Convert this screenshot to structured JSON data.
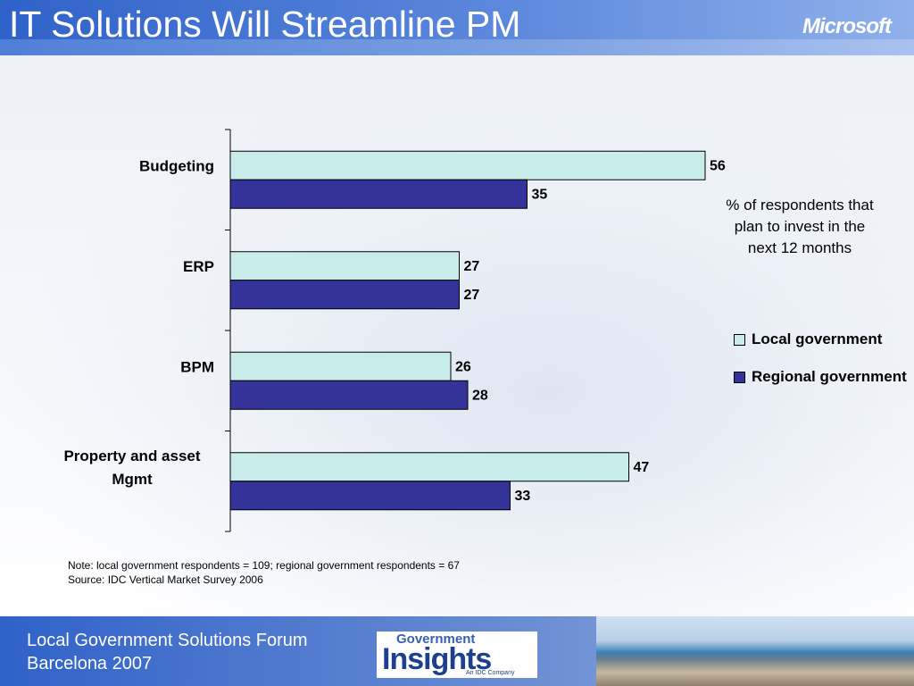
{
  "slide": {
    "title": "IT Solutions Will Streamline PM",
    "logo_text": "Microsoft"
  },
  "chart_data": {
    "type": "bar",
    "orientation": "horizontal",
    "categories": [
      "Budgeting",
      "ERP",
      "BPM",
      "Property and asset Mgmt"
    ],
    "series": [
      {
        "name": "Local government",
        "values": [
          56,
          27,
          26,
          47
        ],
        "color": "#c8ecea"
      },
      {
        "name": "Regional government",
        "values": [
          35,
          27,
          28,
          33
        ],
        "color": "#333399"
      }
    ],
    "annotation": "% of respondents that plan to invest in the next 12 months",
    "legend_placement": "right",
    "grid": false
  },
  "notes": {
    "note": "Note: local government respondents = 109; regional government respondents = 67",
    "source": "Source: IDC Vertical Market Survey 2006"
  },
  "footer": {
    "event_name": "Local Government Solutions Forum",
    "event_place": "Barcelona 2007",
    "partner_logo_top": "Government",
    "partner_logo_main": "Insights",
    "partner_logo_tag": "An IDC Company"
  }
}
